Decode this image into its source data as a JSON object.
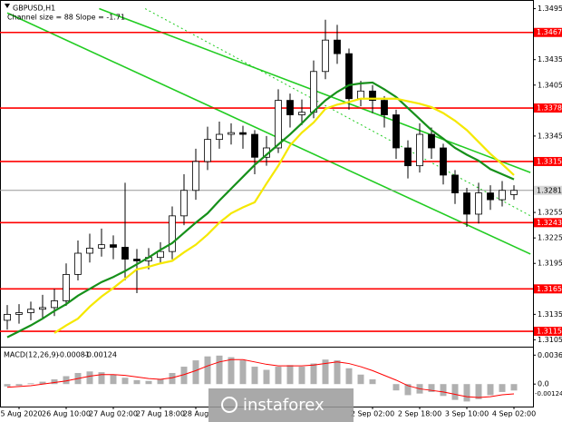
{
  "chart_data": {
    "type": "candlestick",
    "title": "GBPUSD,H1",
    "subtitle": "Channel size = 88 Slope = -1.71",
    "categories": [
      null,
      "25 Aug 2020",
      null,
      null,
      null,
      "26 Aug 10:00",
      null,
      null,
      null,
      "27 Aug 02:00",
      null,
      null,
      null,
      "27 Aug 18:00",
      null,
      null,
      "28 Aug",
      null,
      null,
      null,
      null,
      null,
      null,
      null,
      null,
      null,
      null,
      null,
      null,
      null,
      null,
      "2 Sep 02:00",
      null,
      null,
      null,
      "2 Sep 18:00",
      null,
      null,
      null,
      "3 Sep 10:00",
      null,
      null,
      null,
      "4 Sep 02:00"
    ],
    "open": [
      1.3128,
      1.3135,
      1.3137,
      1.3141,
      1.3143,
      1.3151,
      1.3182,
      1.3207,
      1.3213,
      1.3217,
      1.3214,
      1.32,
      1.3198,
      1.3202,
      1.3209,
      1.3251,
      1.3281,
      1.3315,
      1.3341,
      1.3347,
      1.3349,
      1.3347,
      1.332,
      1.3331,
      1.3387,
      1.337,
      1.3373,
      1.3421,
      1.3458,
      1.3442,
      1.3389,
      1.3398,
      1.3387,
      1.337,
      1.3331,
      1.331,
      1.3347,
      1.3331,
      1.3299,
      1.3278,
      1.3253,
      1.3278,
      1.327,
      1.3276
    ],
    "high": [
      1.3146,
      1.3147,
      1.315,
      1.3158,
      1.3165,
      1.3195,
      1.3222,
      1.323,
      1.3236,
      1.3228,
      1.329,
      1.3212,
      1.3213,
      1.322,
      1.3262,
      1.33,
      1.333,
      1.3356,
      1.3362,
      1.336,
      1.3357,
      1.3352,
      1.3345,
      1.34,
      1.3395,
      1.3388,
      1.3434,
      1.3482,
      1.3476,
      1.3448,
      1.341,
      1.3405,
      1.3392,
      1.3376,
      1.334,
      1.336,
      1.3355,
      1.3336,
      1.3305,
      1.3284,
      1.329,
      1.3287,
      1.3292,
      1.3287
    ],
    "low": [
      1.3117,
      1.3124,
      1.3128,
      1.313,
      1.3133,
      1.3145,
      1.3175,
      1.3196,
      1.3203,
      1.32,
      1.3175,
      1.316,
      1.3188,
      1.3195,
      1.32,
      1.324,
      1.327,
      1.3305,
      1.333,
      1.3335,
      1.333,
      1.33,
      1.331,
      1.3325,
      1.3355,
      1.3358,
      1.3366,
      1.3412,
      1.343,
      1.3376,
      1.338,
      1.3372,
      1.3355,
      1.3318,
      1.3295,
      1.3302,
      1.3318,
      1.3288,
      1.3265,
      1.3238,
      1.3242,
      1.3258,
      1.3262,
      1.327
    ],
    "close": [
      1.3135,
      1.3137,
      1.3141,
      1.3143,
      1.3151,
      1.3182,
      1.3207,
      1.3213,
      1.3217,
      1.3214,
      1.32,
      1.3198,
      1.3202,
      1.3209,
      1.3251,
      1.3281,
      1.3315,
      1.3341,
      1.3347,
      1.3349,
      1.3347,
      1.332,
      1.3331,
      1.3387,
      1.337,
      1.3373,
      1.3421,
      1.3458,
      1.3442,
      1.3389,
      1.3398,
      1.3387,
      1.337,
      1.3331,
      1.331,
      1.3347,
      1.3331,
      1.3299,
      1.3278,
      1.3253,
      1.3278,
      1.327,
      1.3281,
      1.3281
    ],
    "moving_averages": [
      {
        "color": "#16901a",
        "values": [
          1.3108,
          1.3115,
          1.3122,
          1.313,
          1.3139,
          1.3147,
          1.3157,
          1.3165,
          1.3173,
          1.3179,
          1.3186,
          1.3194,
          1.3202,
          1.3211,
          1.3219,
          1.3231,
          1.3243,
          1.3254,
          1.3269,
          1.3283,
          1.3297,
          1.3311,
          1.3323,
          1.3335,
          1.3347,
          1.336,
          1.3374,
          1.3387,
          1.3397,
          1.3405,
          1.3407,
          1.3408,
          1.34,
          1.3391,
          1.3378,
          1.3365,
          1.3352,
          1.3342,
          1.3331,
          1.3323,
          1.3316,
          1.3306,
          1.33,
          1.3294
        ]
      },
      {
        "color": "#f5e800",
        "values": [
          null,
          null,
          null,
          null,
          1.3113,
          1.3122,
          1.313,
          1.3144,
          1.3156,
          1.3166,
          1.3177,
          1.3188,
          1.3191,
          1.3195,
          1.3198,
          1.3208,
          1.3217,
          1.3229,
          1.3243,
          1.3254,
          1.3261,
          1.3267,
          1.3289,
          1.331,
          1.3334,
          1.3349,
          1.3361,
          1.3377,
          1.3382,
          1.3385,
          1.3389,
          1.3389,
          1.3389,
          1.3389,
          1.3386,
          1.3383,
          1.3379,
          1.3372,
          1.3363,
          1.3352,
          1.3338,
          1.3324,
          1.3312,
          1.3299
        ]
      }
    ],
    "trendlines": [
      {
        "x": [
          7.8,
          44.4
        ],
        "y": [
          1.3495,
          1.3302
        ],
        "color": "#22cc22",
        "style": "solid"
      },
      {
        "x": [
          0,
          44.4
        ],
        "y": [
          1.349,
          1.3206
        ],
        "color": "#22cc22",
        "style": "solid"
      },
      {
        "x": [
          11.7,
          44.4
        ],
        "y": [
          1.3495,
          1.3251
        ],
        "color": "#22cc22",
        "style": "dotted"
      }
    ],
    "ylim": [
      1.3098,
      1.3502
    ],
    "yticks": [
      1.3495,
      1.3435,
      1.3405,
      1.3345,
      1.3255,
      1.3225,
      1.3195,
      1.3135,
      1.3105
    ],
    "levels": [
      1.3467,
      1.3378,
      1.3315,
      1.3243,
      1.3165,
      1.3115
    ],
    "level_color": "#ff0000",
    "current_price": 1.3281,
    "macd": {
      "title": "MACD(12,26,9)",
      "histogram": [
        -0.0003,
        -0.0002,
        0.0001,
        0.0003,
        0.0006,
        0.001,
        0.0014,
        0.0016,
        0.0015,
        0.0012,
        0.0008,
        0.0005,
        0.0004,
        0.0006,
        0.0014,
        0.0022,
        0.003,
        0.0035,
        0.0036,
        0.0034,
        0.003,
        0.0022,
        0.0018,
        0.0022,
        0.0024,
        0.0022,
        0.0026,
        0.0031,
        0.003,
        0.002,
        0.0012,
        0.0006,
        0.0,
        -0.0008,
        -0.0014,
        -0.0012,
        -0.001,
        -0.0015,
        -0.002,
        -0.0022,
        -0.0019,
        -0.0014,
        -0.001,
        -0.00081
      ],
      "signal": [
        -0.0004,
        -0.0003,
        -0.0002,
        0,
        0.0002,
        0.0004,
        0.0007,
        0.001,
        0.0012,
        0.0012,
        0.0011,
        0.0009,
        0.0007,
        0.0006,
        0.0008,
        0.0012,
        0.0017,
        0.0023,
        0.0028,
        0.0031,
        0.0031,
        0.0028,
        0.0025,
        0.0023,
        0.0023,
        0.0023,
        0.0024,
        0.0026,
        0.0028,
        0.0026,
        0.0022,
        0.0017,
        0.0011,
        0.0005,
        -0.0002,
        -0.0006,
        -0.0008,
        -0.001,
        -0.0013,
        -0.0016,
        -0.0017,
        -0.0016,
        -0.00135,
        -0.00124
      ],
      "histogram_color": "#b0b0b0",
      "signal_color": "#ff0000",
      "ylim": [
        -0.0025,
        0.0045
      ],
      "yticks": [
        0.00366,
        {
          "value": 0,
          "label": "0.0"
        }
      ]
    },
    "watermark": "instaforex"
  }
}
